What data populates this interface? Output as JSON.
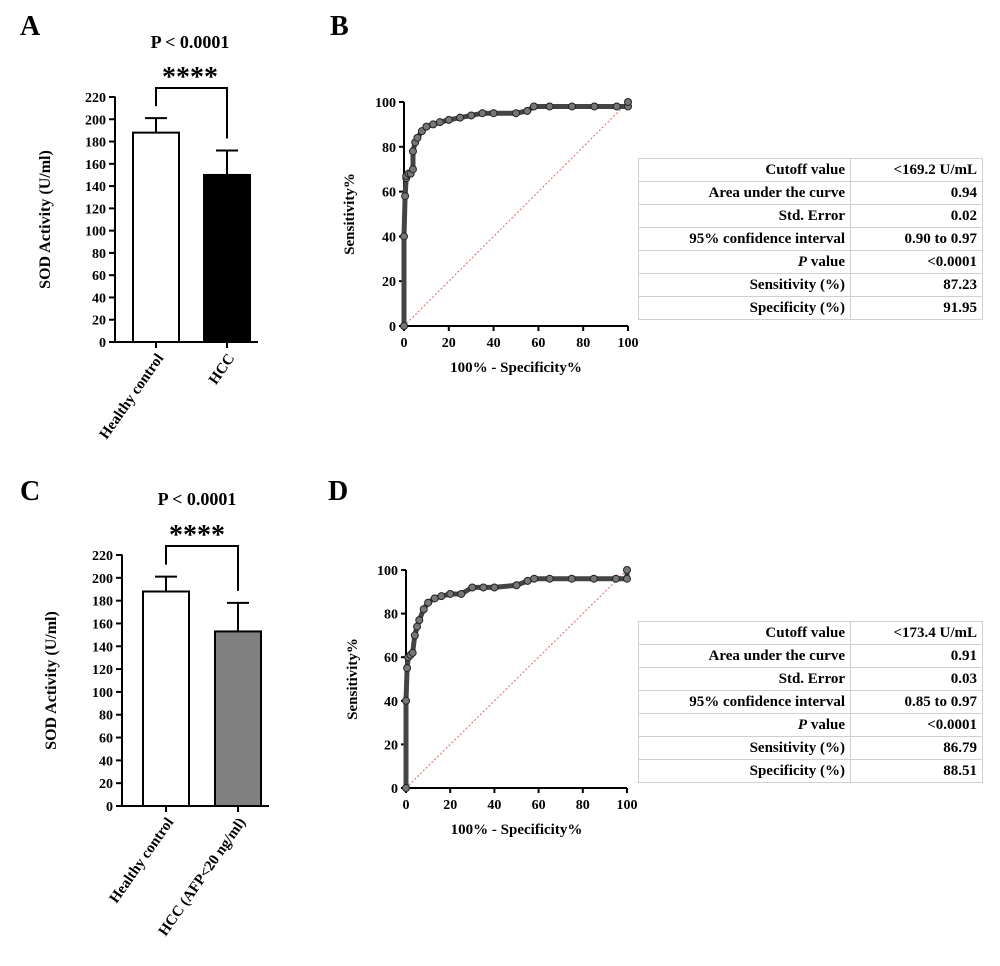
{
  "panels": {
    "A": {
      "letter": "A",
      "p_text": "P < 0.0001",
      "significance": "****",
      "chart_data": {
        "type": "bar",
        "categories": [
          "Healthy control",
          "HCC"
        ],
        "values": [
          188,
          150
        ],
        "errors": [
          13,
          22
        ],
        "fills": [
          "#ffffff",
          "#000000"
        ],
        "ylabel": "SOD Activity (U/ml)",
        "xlabel": "",
        "ylim": [
          0,
          220
        ],
        "yticks": [
          0,
          20,
          40,
          60,
          80,
          100,
          120,
          140,
          160,
          180,
          200,
          220
        ]
      }
    },
    "B": {
      "letter": "B",
      "chart_data": {
        "type": "line",
        "xlabel": "100% - Specificity%",
        "ylabel": "Sensitivity%",
        "xlim": [
          0,
          100
        ],
        "ylim": [
          0,
          100
        ],
        "xticks": [
          0,
          20,
          40,
          60,
          80,
          100
        ],
        "yticks": [
          0,
          20,
          40,
          60,
          80,
          100
        ],
        "diagonal_color": "#e06666",
        "series": [
          {
            "x": [
              0,
              0,
              0.5,
              1,
              1,
              2,
              3,
              4,
              4,
              5,
              6,
              8,
              10,
              13,
              16,
              20,
              25,
              30,
              35,
              40,
              50,
              55,
              58,
              65,
              75,
              85,
              95,
              100,
              100
            ],
            "y": [
              0,
              40,
              58,
              66,
              67,
              68,
              68,
              70,
              78,
              82,
              84,
              87,
              89,
              90,
              91,
              92,
              93,
              94,
              95,
              95,
              95,
              96,
              98,
              98,
              98,
              98,
              98,
              98,
              100
            ]
          }
        ]
      },
      "table": {
        "rows": [
          {
            "label": "Cutoff value",
            "value": "<169.2 U/mL"
          },
          {
            "label": "Area under the curve",
            "value": "0.94"
          },
          {
            "label": "Std. Error",
            "value": "0.02"
          },
          {
            "label": "95% confidence interval",
            "value": "0.90 to 0.97"
          },
          {
            "label_p": "P",
            "label": " value",
            "value": "<0.0001"
          },
          {
            "label": "Sensitivity (%)",
            "value": "87.23"
          },
          {
            "label": "Specificity (%)",
            "value": "91.95"
          }
        ]
      }
    },
    "C": {
      "letter": "C",
      "p_text": "P < 0.0001",
      "significance": "****",
      "chart_data": {
        "type": "bar",
        "categories": [
          "Healthy control",
          "HCC (AFP<20 ng/ml)"
        ],
        "values": [
          188,
          153
        ],
        "errors": [
          13,
          25
        ],
        "fills": [
          "#ffffff",
          "#808080"
        ],
        "ylabel": "SOD Activity (U/ml)",
        "xlabel": "",
        "ylim": [
          0,
          220
        ],
        "yticks": [
          0,
          20,
          40,
          60,
          80,
          100,
          120,
          140,
          160,
          180,
          200,
          220
        ]
      }
    },
    "D": {
      "letter": "D",
      "chart_data": {
        "type": "line",
        "xlabel": "100% - Specificity%",
        "ylabel": "Sensitivity%",
        "xlim": [
          0,
          100
        ],
        "ylim": [
          0,
          100
        ],
        "xticks": [
          0,
          20,
          40,
          60,
          80,
          100
        ],
        "yticks": [
          0,
          20,
          40,
          60,
          80,
          100
        ],
        "diagonal_color": "#e06666",
        "series": [
          {
            "x": [
              0,
              0,
              0.5,
              1,
              2,
              3,
              4,
              5,
              6,
              8,
              10,
              13,
              16,
              20,
              25,
              30,
              35,
              40,
              50,
              55,
              58,
              65,
              75,
              85,
              95,
              100,
              100
            ],
            "y": [
              0,
              40,
              55,
              60,
              61,
              62,
              70,
              74,
              77,
              82,
              85,
              87,
              88,
              89,
              89,
              92,
              92,
              92,
              93,
              95,
              96,
              96,
              96,
              96,
              96,
              96,
              100
            ]
          }
        ]
      },
      "table": {
        "rows": [
          {
            "label": "Cutoff value",
            "value": "<173.4 U/mL"
          },
          {
            "label": "Area under the curve",
            "value": "0.91"
          },
          {
            "label": "Std. Error",
            "value": "0.03"
          },
          {
            "label": "95% confidence interval",
            "value": "0.85 to 0.97"
          },
          {
            "label_p": "P",
            "label": " value",
            "value": "<0.0001"
          },
          {
            "label": "Sensitivity (%)",
            "value": "86.79"
          },
          {
            "label": "Specificity (%)",
            "value": "88.51"
          }
        ]
      }
    }
  }
}
